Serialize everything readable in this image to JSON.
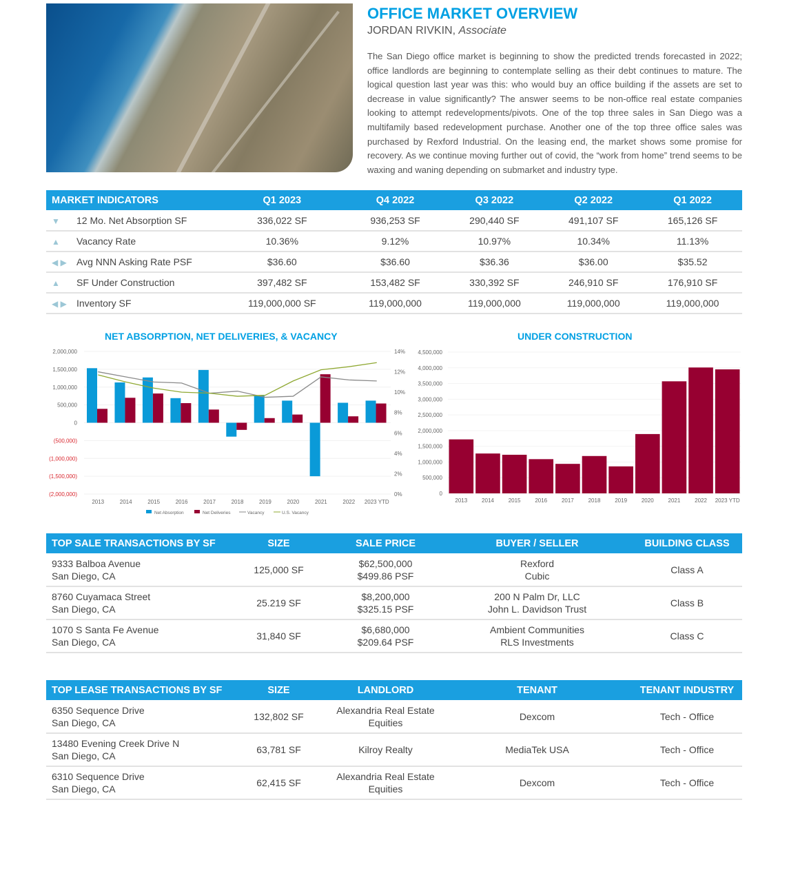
{
  "header": {
    "title": "OFFICE MARKET OVERVIEW",
    "author": "JORDAN RIVKIN,",
    "role": "Associate",
    "body": "The San Diego office market is beginning to show the predicted trends forecasted in 2022; office landlords are beginning to contemplate selling as their debt continues to mature. The logical question last year was this: who would buy an office building if the assets are set to decrease in value significantly? The answer seems to be non-office real estate companies looking to attempt redevelopments/pivots. One of the top three sales in San Diego was a multifamily based redevelopment purchase. Another one of the top three office sales was purchased by Rexford Industrial. On the leasing end, the market shows some promise for recovery. As we continue moving further out of covid, the “work from home” trend seems to be waxing and waning depending on submarket and industry type."
  },
  "indicators": {
    "headers": [
      "MARKET INDICATORS",
      "Q1 2023",
      "Q4 2022",
      "Q3 2022",
      "Q2 2022",
      "Q1 2022"
    ],
    "rows": [
      {
        "trend": "▼",
        "label": "12 Mo. Net Absorption SF",
        "values": [
          "336,022 SF",
          "936,253 SF",
          "290,440 SF",
          "491,107 SF",
          "165,126 SF"
        ]
      },
      {
        "trend": "▲",
        "label": "Vacancy Rate",
        "values": [
          "10.36%",
          "9.12%",
          "10.97%",
          "10.34%",
          "11.13%"
        ]
      },
      {
        "trend": "◀ ▶",
        "label": "Avg NNN Asking Rate PSF",
        "values": [
          "$36.60",
          "$36.60",
          "$36.36",
          "$36.00",
          "$35.52"
        ]
      },
      {
        "trend": "▲",
        "label": "SF Under Construction",
        "values": [
          "397,482 SF",
          "153,482 SF",
          "330,392 SF",
          "246,910 SF",
          "176,910 SF"
        ]
      },
      {
        "trend": "◀ ▶",
        "label": "Inventory SF",
        "values": [
          "119,000,000 SF",
          "119,000,000",
          "119,000,000",
          "119,000,000",
          "119,000,000"
        ]
      }
    ]
  },
  "chart_data": [
    {
      "type": "bar",
      "title": "NET ABSORPTION, NET DELIVERIES, & VACANCY",
      "categories": [
        "2013",
        "2014",
        "2015",
        "2016",
        "2017",
        "2018",
        "2019",
        "2020",
        "2021",
        "2022",
        "2023 YTD"
      ],
      "ylim": [
        -2000000,
        2000000
      ],
      "y2lim": [
        0,
        14
      ],
      "yticks": [
        "2,000,000",
        "1,500,000",
        "1,000,000",
        "500,000",
        "0",
        "(500,000)",
        "(1,000,000)",
        "(1,500,000)",
        "(2,000,000)"
      ],
      "y2ticks": [
        "14%",
        "12%",
        "10%",
        "8%",
        "6%",
        "4%",
        "2%",
        "0%"
      ],
      "series": [
        {
          "name": "Net Absorption",
          "kind": "bar",
          "color": "#0a9ad8",
          "values": [
            1530000,
            1130000,
            1270000,
            690000,
            1480000,
            -390000,
            760000,
            620000,
            -1500000,
            560000,
            620000
          ]
        },
        {
          "name": "Net Deliveries",
          "kind": "bar",
          "color": "#970031",
          "values": [
            390000,
            700000,
            820000,
            550000,
            370000,
            -200000,
            130000,
            230000,
            1360000,
            180000,
            540000
          ]
        },
        {
          "name": "Vacancy",
          "kind": "line",
          "axis": "right",
          "color": "#8a8a8a",
          "values": [
            12.0,
            11.5,
            11.0,
            10.9,
            9.9,
            10.1,
            9.5,
            9.6,
            11.5,
            11.2,
            11.1
          ]
        },
        {
          "name": "U.S. Vacancy",
          "kind": "line",
          "axis": "right",
          "color": "#8fa832",
          "values": [
            11.7,
            11.0,
            10.4,
            10.0,
            9.9,
            9.6,
            9.7,
            11.1,
            12.2,
            12.5,
            12.9
          ]
        }
      ],
      "legend": "bottom"
    },
    {
      "type": "bar",
      "title": "UNDER CONSTRUCTION",
      "categories": [
        "2013",
        "2014",
        "2015",
        "2016",
        "2017",
        "2018",
        "2019",
        "2020",
        "2021",
        "2022",
        "2023 YTD"
      ],
      "ylim": [
        0,
        4500000
      ],
      "yticks": [
        "4,500,000",
        "4,000,000",
        "3,500,000",
        "3,000,000",
        "2,500,000",
        "2,000,000",
        "1,500,000",
        "1,000,000",
        "500,000",
        "0"
      ],
      "series": [
        {
          "name": "Under Construction",
          "color": "#970031",
          "values": [
            1720000,
            1270000,
            1230000,
            1090000,
            940000,
            1190000,
            860000,
            1890000,
            3570000,
            4010000,
            3950000
          ]
        }
      ]
    }
  ],
  "sales": {
    "headers": [
      "TOP SALE TRANSACTIONS BY SF",
      "SIZE",
      "SALE PRICE",
      "BUYER / SELLER",
      "BUILDING CLASS"
    ],
    "rows": [
      {
        "addr1": "9333 Balboa Avenue",
        "addr2": "San Diego, CA",
        "size": "125,000 SF",
        "price": "$62,500,000",
        "psf": "$499.86 PSF",
        "buyer": "Rexford",
        "seller": "Cubic",
        "cls": "Class A"
      },
      {
        "addr1": "8760 Cuyamaca Street",
        "addr2": "San Diego, CA",
        "size": "25.219 SF",
        "price": "$8,200,000",
        "psf": "$325.15 PSF",
        "buyer": "200 N Palm Dr, LLC",
        "seller": "John L. Davidson Trust",
        "cls": "Class B"
      },
      {
        "addr1": "1070 S Santa Fe Avenue",
        "addr2": "San Diego, CA",
        "size": "31,840 SF",
        "price": "$6,680,000",
        "psf": "$209.64 PSF",
        "buyer": "Ambient Communities",
        "seller": "RLS Investments",
        "cls": "Class C"
      }
    ]
  },
  "leases": {
    "headers": [
      "TOP LEASE TRANSACTIONS BY SF",
      "SIZE",
      "LANDLORD",
      "TENANT",
      "TENANT INDUSTRY"
    ],
    "rows": [
      {
        "addr1": "6350 Sequence Drive",
        "addr2": "San Diego, CA",
        "size": "132,802 SF",
        "landlord1": "Alexandria Real Estate",
        "landlord2": "Equities",
        "tenant": "Dexcom",
        "industry": "Tech - Office"
      },
      {
        "addr1": "13480 Evening Creek Drive N",
        "addr2": "San Diego, CA",
        "size": "63,781 SF",
        "landlord1": "Kilroy Realty",
        "landlord2": "",
        "tenant": "MediaTek USA",
        "industry": "Tech - Office"
      },
      {
        "addr1": "6310 Sequence Drive",
        "addr2": "San Diego, CA",
        "size": "62,415 SF",
        "landlord1": "Alexandria Real Estate",
        "landlord2": "Equities",
        "tenant": "Dexcom",
        "industry": "Tech - Office"
      }
    ]
  }
}
